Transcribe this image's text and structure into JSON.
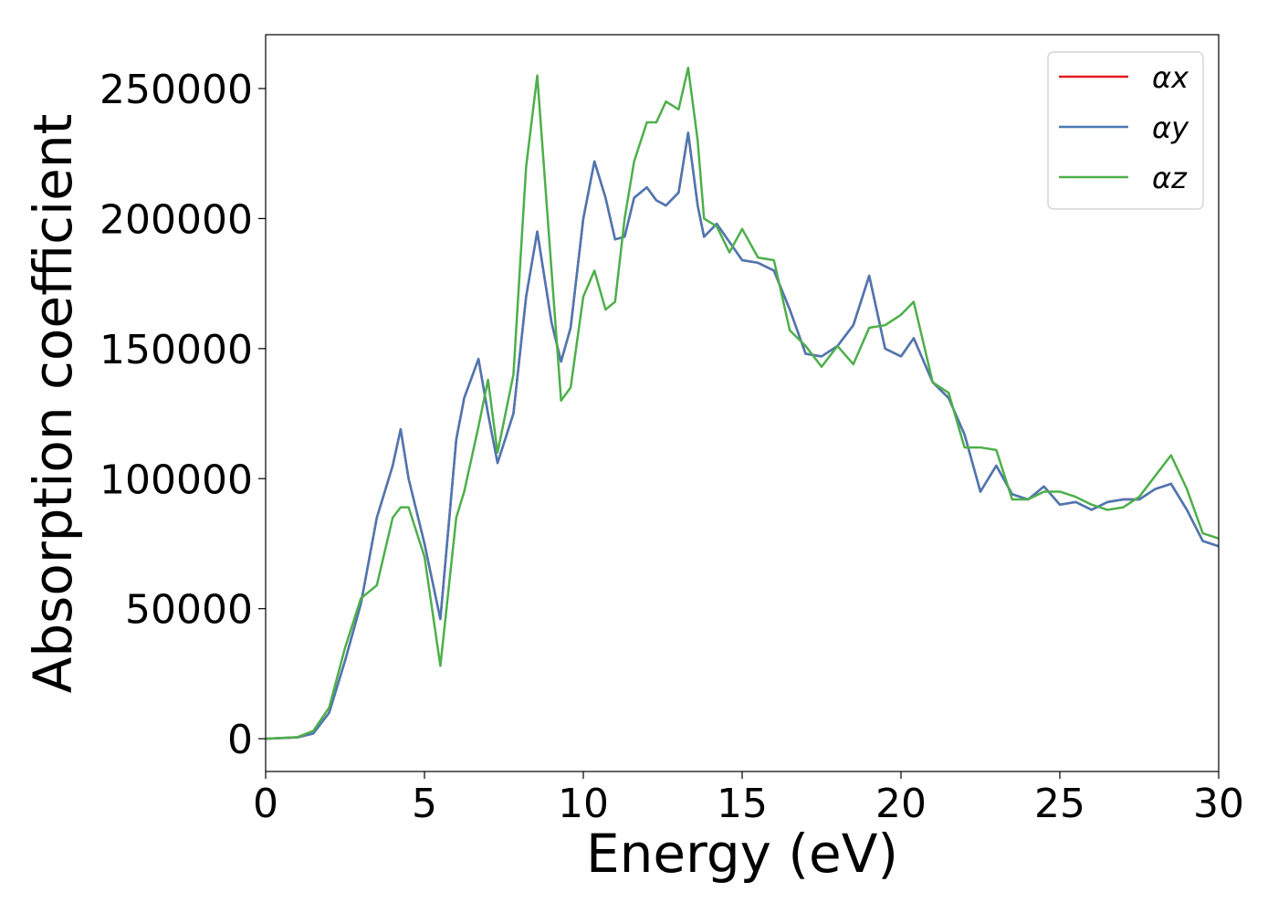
{
  "chart_data": {
    "type": "line",
    "xlabel": "Energy (eV)",
    "ylabel": "Absorption coefficient",
    "x": [
      0,
      1,
      1.5,
      2,
      2.5,
      3,
      3.5,
      4,
      4.25,
      4.5,
      5,
      5.5,
      6,
      6.25,
      6.7,
      7,
      7.3,
      7.8,
      8.2,
      8.55,
      9,
      9.3,
      9.6,
      10,
      10.35,
      10.7,
      11,
      11.3,
      11.6,
      12,
      12.3,
      12.6,
      13,
      13.3,
      13.6,
      13.8,
      14.2,
      14.6,
      15,
      15.5,
      16,
      16.5,
      17,
      17.5,
      18,
      18.5,
      19,
      19.5,
      20,
      20.4,
      21,
      21.5,
      22,
      22.5,
      23,
      23.5,
      24,
      24.5,
      25,
      25.5,
      26,
      26.5,
      27,
      27.5,
      28,
      28.5,
      29,
      29.5,
      30
    ],
    "series": [
      {
        "name": "αx",
        "color": "#e41a1c",
        "values": [
          0,
          500,
          2000,
          10000,
          30000,
          52000,
          85000,
          105000,
          119000,
          100000,
          75000,
          46000,
          115000,
          131000,
          146000,
          125000,
          106000,
          125000,
          170000,
          195000,
          160000,
          145000,
          158000,
          200000,
          222000,
          208000,
          192000,
          193000,
          208000,
          212000,
          207000,
          205000,
          210000,
          233000,
          205000,
          193000,
          198000,
          191000,
          184000,
          183000,
          180000,
          165000,
          148000,
          147000,
          151000,
          159000,
          178000,
          150000,
          147000,
          154000,
          137000,
          131000,
          117000,
          95000,
          105000,
          94000,
          92000,
          97000,
          90000,
          91000,
          88000,
          91000,
          92000,
          92000,
          96000,
          98000,
          88000,
          76000,
          74000
        ]
      },
      {
        "name": "αy",
        "color": "#4a78b4",
        "values": [
          0,
          500,
          2000,
          10000,
          30000,
          52000,
          85000,
          105000,
          119000,
          100000,
          75000,
          46000,
          115000,
          131000,
          146000,
          125000,
          106000,
          125000,
          170000,
          195000,
          160000,
          145000,
          158000,
          200000,
          222000,
          208000,
          192000,
          193000,
          208000,
          212000,
          207000,
          205000,
          210000,
          233000,
          205000,
          193000,
          198000,
          191000,
          184000,
          183000,
          180000,
          165000,
          148000,
          147000,
          151000,
          159000,
          178000,
          150000,
          147000,
          154000,
          137000,
          131000,
          117000,
          95000,
          105000,
          94000,
          92000,
          97000,
          90000,
          91000,
          88000,
          91000,
          92000,
          92000,
          96000,
          98000,
          88000,
          76000,
          74000
        ]
      },
      {
        "name": "αz",
        "color": "#4daf4a",
        "values": [
          0,
          600,
          3000,
          12000,
          35000,
          54000,
          59000,
          85000,
          89000,
          89000,
          70000,
          28000,
          85000,
          95000,
          120000,
          138000,
          110000,
          140000,
          220000,
          255000,
          180000,
          130000,
          135000,
          170000,
          180000,
          165000,
          168000,
          200000,
          222000,
          237000,
          237000,
          245000,
          242000,
          258000,
          230000,
          200000,
          197000,
          187000,
          196000,
          185000,
          184000,
          157000,
          151000,
          143000,
          151000,
          144000,
          158000,
          159000,
          163000,
          168000,
          137000,
          133000,
          112000,
          112000,
          111000,
          92000,
          92000,
          95000,
          95000,
          93000,
          90000,
          88000,
          89000,
          93000,
          101000,
          109000,
          96000,
          79000,
          77000
        ]
      }
    ],
    "xlim": [
      0,
      30
    ],
    "xticks": [
      0,
      5,
      10,
      15,
      20,
      25,
      30
    ],
    "ylim": [
      -12600,
      270700
    ],
    "yticks": [
      0,
      50000,
      100000,
      150000,
      200000,
      250000
    ],
    "legend": "upper right"
  }
}
